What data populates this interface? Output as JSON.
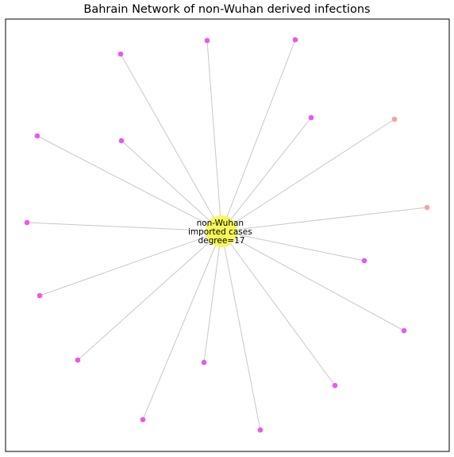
{
  "title": "Bahrain Network of non-Wuhan derived infections",
  "hub": {
    "label_lines": [
      "non-Wuhan",
      "imported cases",
      "degree=17"
    ],
    "color": "#f7f75a"
  },
  "colors": {
    "node_magenta": "#ee55ee",
    "node_salmon": "#f4a3a3",
    "edge": "#c8c8c8",
    "frame": "#000000"
  },
  "nodes": [
    {
      "id": "n1",
      "color": "magenta"
    },
    {
      "id": "n2",
      "color": "magenta"
    },
    {
      "id": "n3",
      "color": "magenta"
    },
    {
      "id": "n4",
      "color": "magenta"
    },
    {
      "id": "n5",
      "color": "salmon"
    },
    {
      "id": "n6",
      "color": "magenta"
    },
    {
      "id": "n7",
      "color": "magenta"
    },
    {
      "id": "n8",
      "color": "salmon"
    },
    {
      "id": "n9",
      "color": "magenta"
    },
    {
      "id": "n10",
      "color": "magenta"
    },
    {
      "id": "n11",
      "color": "magenta"
    },
    {
      "id": "n12",
      "color": "magenta"
    },
    {
      "id": "n13",
      "color": "magenta"
    },
    {
      "id": "n14",
      "color": "magenta"
    },
    {
      "id": "n15",
      "color": "magenta"
    },
    {
      "id": "n16",
      "color": "magenta"
    },
    {
      "id": "n17",
      "color": "magenta"
    }
  ]
}
